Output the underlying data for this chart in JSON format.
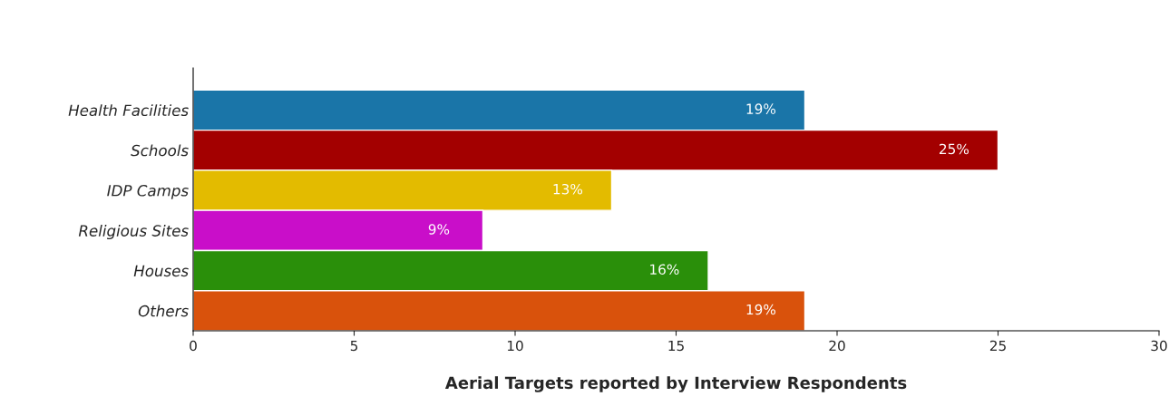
{
  "chart_data": {
    "type": "bar",
    "orientation": "horizontal",
    "xlabel": "Aerial Targets reported by Interview Respondents",
    "categories": [
      "Health Facilities",
      "Schools",
      "IDP Camps",
      "Religious Sites",
      "Houses",
      "Others"
    ],
    "values": [
      19,
      25,
      13,
      9,
      16,
      19
    ],
    "value_labels": [
      "19%",
      "25%",
      "13%",
      "9%",
      "16%",
      "19%"
    ],
    "colors": [
      "#1a75a8",
      "#a30000",
      "#e3bb00",
      "#c90ec9",
      "#2a8f0a",
      "#d9520c"
    ],
    "xlim": [
      0,
      30
    ],
    "xticks": [
      0,
      5,
      10,
      15,
      20,
      25,
      30
    ],
    "grid": false
  }
}
